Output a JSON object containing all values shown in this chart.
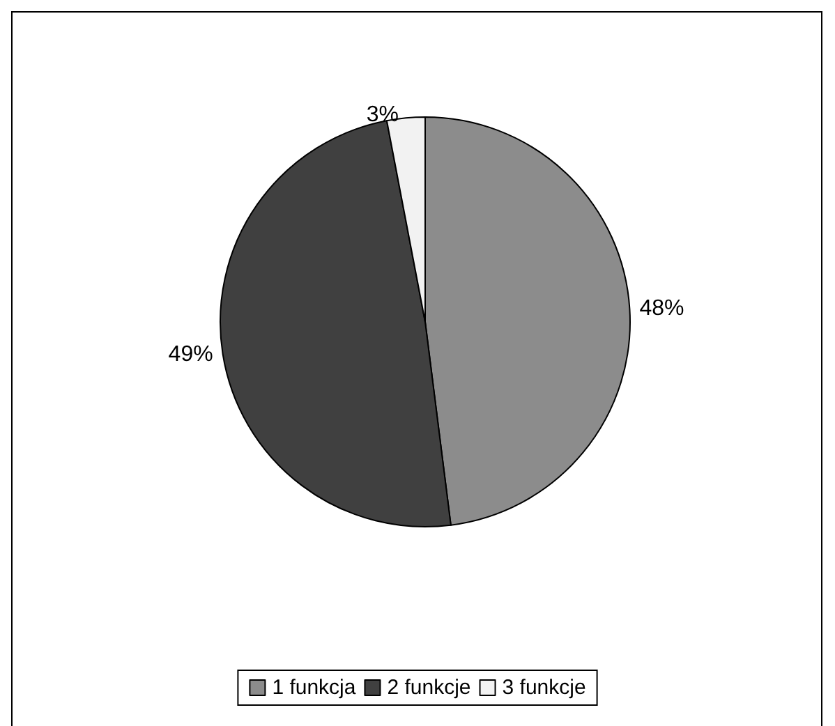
{
  "chart_data": {
    "type": "pie",
    "categories": [
      "1 funkcja",
      "2 funkcje",
      "3 funkcje"
    ],
    "values": [
      48,
      49,
      3
    ],
    "colors": [
      "#8c8c8c",
      "#404040",
      "#f2f2f2"
    ],
    "value_labels": [
      "48%",
      "49%",
      "3%"
    ],
    "legend": "bottom"
  }
}
